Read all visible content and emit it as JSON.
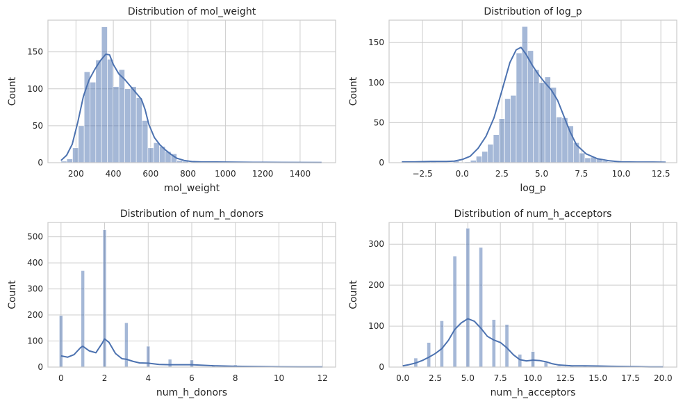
{
  "chart_data": [
    {
      "type": "bar",
      "title": "Distribution of mol_weight",
      "xlabel": "mol_weight",
      "ylabel": "Count",
      "xlim": [
        50,
        1590
      ],
      "ylim": [
        0,
        193
      ],
      "xticks": [
        200,
        400,
        600,
        800,
        1000,
        1200,
        1400
      ],
      "xtick_labels": [
        "200",
        "400",
        "600",
        "800",
        "1000",
        "1200",
        "1400"
      ],
      "yticks": [
        0,
        50,
        100,
        150
      ],
      "ytick_labels": [
        "0",
        "50",
        "100",
        "150"
      ],
      "grid": true,
      "bin_edges": [
        120,
        151,
        182,
        213,
        244,
        275,
        306,
        337,
        368,
        399,
        430,
        461,
        492,
        523,
        554,
        585,
        616,
        647,
        678,
        709,
        740,
        771,
        802,
        833,
        864,
        895,
        926,
        957,
        988,
        1019,
        1050,
        1081,
        1112,
        1143,
        1174,
        1205,
        1236,
        1267,
        1298,
        1329,
        1360,
        1391,
        1422,
        1453,
        1484,
        1515
      ],
      "counts": [
        2,
        5,
        20,
        50,
        123,
        109,
        139,
        184,
        140,
        103,
        126,
        100,
        103,
        88,
        57,
        20,
        27,
        22,
        15,
        12,
        3,
        2,
        0,
        1,
        0,
        0,
        1,
        0,
        0,
        0,
        1,
        1,
        0,
        0,
        0,
        0,
        0,
        0,
        0,
        0,
        0,
        0,
        0,
        0,
        1
      ],
      "kde": {
        "x": [
          120,
          150,
          180,
          210,
          240,
          270,
          300,
          330,
          360,
          380,
          400,
          430,
          460,
          490,
          520,
          550,
          570,
          590,
          620,
          650,
          680,
          710,
          740,
          780,
          820,
          880,
          950,
          1050,
          1150,
          1300,
          1515
        ],
        "y": [
          3,
          10,
          25,
          55,
          90,
          112,
          126,
          138,
          147,
          146,
          133,
          120,
          113,
          104,
          95,
          86,
          72,
          52,
          34,
          24,
          17,
          11,
          6,
          3,
          1.5,
          1,
          1,
          0.7,
          0.5,
          0.3,
          0.2
        ]
      }
    },
    {
      "type": "bar",
      "title": "Distribution of log_p",
      "xlabel": "log_p",
      "ylabel": "Count",
      "xlim": [
        -4.6,
        13.5
      ],
      "ylim": [
        0,
        178
      ],
      "xticks": [
        -2.5,
        0.0,
        2.5,
        5.0,
        7.5,
        10.0,
        12.5
      ],
      "xtick_labels": [
        "−2.5",
        "0.0",
        "2.5",
        "5.0",
        "7.5",
        "10.0",
        "12.5"
      ],
      "yticks": [
        0,
        50,
        100,
        150
      ],
      "ytick_labels": [
        "0",
        "50",
        "100",
        "150"
      ],
      "grid": true,
      "bin_edges": [
        -3.8,
        -3.44,
        -3.08,
        -2.72,
        -2.36,
        -2.0,
        -1.64,
        -1.28,
        -0.92,
        -0.56,
        -0.2,
        0.16,
        0.52,
        0.88,
        1.24,
        1.6,
        1.96,
        2.32,
        2.68,
        3.04,
        3.4,
        3.76,
        4.12,
        4.48,
        4.84,
        5.2,
        5.56,
        5.92,
        6.28,
        6.64,
        7.0,
        7.36,
        7.72,
        8.08,
        8.44,
        8.8,
        9.16,
        9.52,
        9.88,
        10.24,
        10.6,
        10.96,
        11.32,
        11.68,
        12.04,
        12.4
      ],
      "counts": [
        1,
        0,
        0,
        0,
        1,
        1,
        0,
        0,
        0,
        2,
        0,
        1,
        3,
        8,
        14,
        23,
        35,
        55,
        80,
        84,
        137,
        170,
        140,
        116,
        100,
        107,
        94,
        57,
        56,
        46,
        25,
        12,
        6,
        7,
        5,
        2,
        1,
        1,
        0,
        0,
        0,
        0,
        0,
        0,
        1
      ],
      "kde": {
        "x": [
          -3.8,
          -3.0,
          -2.0,
          -1.0,
          -0.5,
          0.0,
          0.5,
          1.0,
          1.5,
          2.0,
          2.5,
          3.0,
          3.4,
          3.7,
          4.0,
          4.4,
          4.8,
          5.2,
          5.6,
          6.0,
          6.4,
          6.8,
          7.2,
          7.8,
          8.5,
          9.2,
          10.0,
          11.0,
          12.0,
          12.8
        ],
        "y": [
          1,
          1,
          1.5,
          1.5,
          2,
          4,
          8,
          18,
          33,
          56,
          90,
          125,
          141,
          144,
          136,
          122,
          110,
          100,
          91,
          78,
          58,
          38,
          22,
          11,
          5,
          2.5,
          1,
          0.8,
          0.8,
          0.5
        ]
      }
    },
    {
      "type": "bar",
      "title": "Distribution of num_h_donors",
      "xlabel": "num_h_donors",
      "ylabel": "Count",
      "xlim": [
        -0.6,
        12.6
      ],
      "ylim": [
        0,
        555
      ],
      "xticks": [
        0,
        2,
        4,
        6,
        8,
        10,
        12
      ],
      "xtick_labels": [
        "0",
        "2",
        "4",
        "6",
        "8",
        "10",
        "12"
      ],
      "yticks": [
        0,
        100,
        200,
        300,
        400,
        500
      ],
      "ytick_labels": [
        "0",
        "100",
        "200",
        "300",
        "400",
        "500"
      ],
      "grid": true,
      "bar_width": 0.16,
      "bar_x": [
        0,
        1,
        2,
        3,
        4,
        5,
        6,
        7,
        8,
        9,
        10,
        11,
        12
      ],
      "counts": [
        198,
        370,
        527,
        170,
        80,
        30,
        27,
        8,
        8,
        2,
        1,
        1,
        2
      ],
      "kde": {
        "x": [
          0,
          0.3,
          0.6,
          0.9,
          1.0,
          1.3,
          1.6,
          1.9,
          2.0,
          2.2,
          2.5,
          2.8,
          3.0,
          3.3,
          3.6,
          4.0,
          4.5,
          5.0,
          5.5,
          6.0,
          6.5,
          7.0,
          8.0,
          9.0,
          10.0,
          11.0,
          12.0
        ],
        "y": [
          43,
          38,
          48,
          75,
          80,
          62,
          55,
          93,
          108,
          95,
          52,
          32,
          30,
          22,
          16,
          15,
          10,
          9,
          9,
          9,
          7,
          5,
          3,
          2,
          1,
          0.5,
          0.5
        ]
      }
    },
    {
      "type": "bar",
      "title": "Distribution of num_h_acceptors",
      "xlabel": "num_h_acceptors",
      "ylabel": "Count",
      "xlim": [
        -1.05,
        21.05
      ],
      "ylim": [
        0,
        353
      ],
      "xticks": [
        0,
        2.5,
        5,
        7.5,
        10,
        12.5,
        15,
        17.5,
        20
      ],
      "xtick_labels": [
        "0.0",
        "2.5",
        "5.0",
        "7.5",
        "10.0",
        "12.5",
        "15.0",
        "17.5",
        "20.0"
      ],
      "yticks": [
        0,
        100,
        200,
        300
      ],
      "ytick_labels": [
        "0",
        "100",
        "200",
        "300"
      ],
      "grid": true,
      "bar_width": 0.28,
      "bar_x": [
        0,
        1,
        2,
        3,
        4,
        5,
        6,
        7,
        8,
        9,
        10,
        11,
        12,
        13,
        14,
        15,
        16,
        17,
        18,
        19,
        20
      ],
      "counts": [
        1,
        22,
        60,
        113,
        271,
        339,
        292,
        116,
        104,
        31,
        38,
        12,
        2,
        2,
        4,
        1,
        0,
        1,
        0,
        0,
        1
      ],
      "kde": {
        "x": [
          0,
          0.5,
          1,
          1.5,
          2,
          2.5,
          3,
          3.5,
          4,
          4.5,
          5,
          5.5,
          6,
          6.5,
          7,
          7.5,
          8,
          8.5,
          9,
          9.5,
          10,
          10.5,
          11,
          11.5,
          12,
          13,
          14,
          15,
          16,
          17,
          18,
          19,
          20
        ],
        "y": [
          3,
          6,
          10,
          16,
          24,
          33,
          45,
          65,
          92,
          108,
          118,
          112,
          95,
          75,
          66,
          60,
          47,
          30,
          18,
          15,
          17,
          16,
          13,
          8,
          5,
          3,
          3,
          2.5,
          2,
          1.5,
          1,
          0.5,
          0.5
        ]
      }
    }
  ]
}
